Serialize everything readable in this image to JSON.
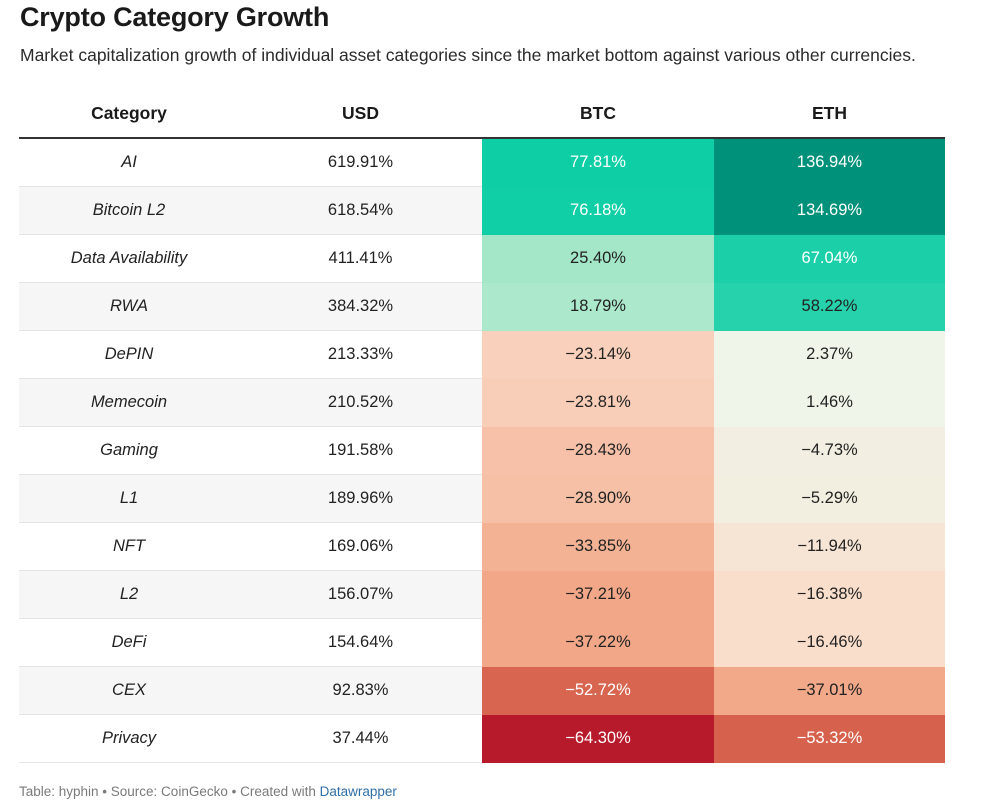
{
  "title": "Crypto Category Growth",
  "subtitle": "Market capitalization growth of individual asset categories since the market bottom against various other currencies.",
  "footer": {
    "text": "Table: hyphin • Source: CoinGecko • Created with ",
    "link": "Datawrapper"
  },
  "colors": {
    "positive_strong": "#00917a",
    "positive": "#0ccda4",
    "positive_light": "#b8ecd1",
    "neutral": "#eff5e9",
    "negative_light": "#fbd9c6",
    "negative": "#f0a07e",
    "negative_strong": "#b51529"
  },
  "chart_data": {
    "type": "table",
    "columns": [
      "Category",
      "USD",
      "BTC",
      "ETH"
    ],
    "rows": [
      {
        "category": "AI",
        "usd": "619.91%",
        "btc": "77.81%",
        "eth": "136.94%"
      },
      {
        "category": "Bitcoin L2",
        "usd": "618.54%",
        "btc": "76.18%",
        "eth": "134.69%"
      },
      {
        "category": "Data Availability",
        "usd": "411.41%",
        "btc": "25.40%",
        "eth": "67.04%"
      },
      {
        "category": "RWA",
        "usd": "384.32%",
        "btc": "18.79%",
        "eth": "58.22%"
      },
      {
        "category": "DePIN",
        "usd": "213.33%",
        "btc": "−23.14%",
        "eth": "2.37%"
      },
      {
        "category": "Memecoin",
        "usd": "210.52%",
        "btc": "−23.81%",
        "eth": "1.46%"
      },
      {
        "category": "Gaming",
        "usd": "191.58%",
        "btc": "−28.43%",
        "eth": "−4.73%"
      },
      {
        "category": "L1",
        "usd": "189.96%",
        "btc": "−28.90%",
        "eth": "−5.29%"
      },
      {
        "category": "NFT",
        "usd": "169.06%",
        "btc": "−33.85%",
        "eth": "−11.94%"
      },
      {
        "category": "L2",
        "usd": "156.07%",
        "btc": "−37.21%",
        "eth": "−16.38%"
      },
      {
        "category": "DeFi",
        "usd": "154.64%",
        "btc": "−37.22%",
        "eth": "−16.46%"
      },
      {
        "category": "CEX",
        "usd": "92.83%",
        "btc": "−52.72%",
        "eth": "−37.01%"
      },
      {
        "category": "Privacy",
        "usd": "37.44%",
        "btc": "−64.30%",
        "eth": "−53.32%"
      }
    ]
  }
}
